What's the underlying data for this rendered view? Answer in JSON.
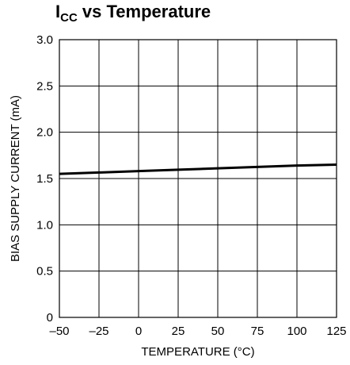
{
  "chart_data": {
    "type": "line",
    "title_main": "I",
    "title_sub": "CC",
    "title_rest": " vs Temperature",
    "xlabel": "TEMPERATURE (°C)",
    "ylabel": "BIAS SUPPLY CURRENT (mA)",
    "xlim": [
      -50,
      125
    ],
    "ylim": [
      0,
      3.0
    ],
    "x_ticks": [
      -50,
      -25,
      0,
      25,
      50,
      75,
      100,
      125
    ],
    "x_tick_labels": [
      "–50",
      "–25",
      "0",
      "25",
      "50",
      "75",
      "100",
      "125"
    ],
    "y_ticks": [
      0,
      0.5,
      1.0,
      1.5,
      2.0,
      2.5,
      3.0
    ],
    "y_tick_labels": [
      "0",
      "0.5",
      "1.0",
      "1.5",
      "2.0",
      "2.5",
      "3.0"
    ],
    "grid": true,
    "series": [
      {
        "x": [
          -50,
          -25,
          0,
          25,
          50,
          75,
          100,
          125
        ],
        "values": [
          1.55,
          1.565,
          1.58,
          1.595,
          1.61,
          1.625,
          1.64,
          1.65
        ]
      }
    ],
    "colors": {
      "line": "#000000",
      "grid": "#000000"
    }
  }
}
